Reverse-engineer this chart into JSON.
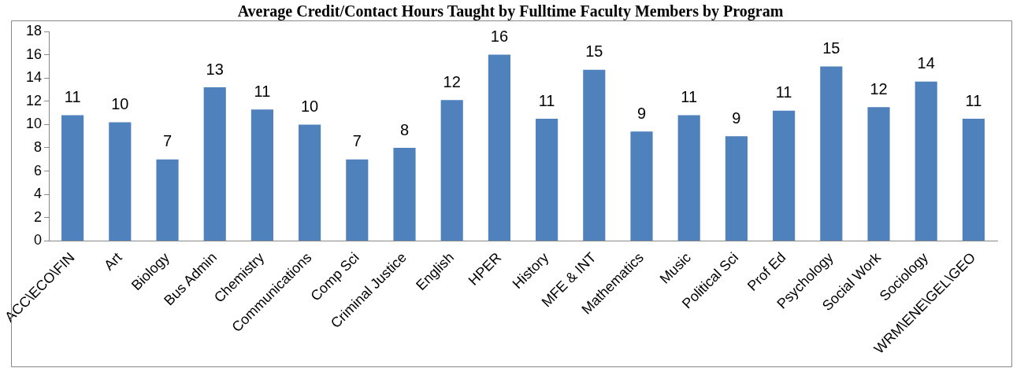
{
  "chart_data": {
    "type": "bar",
    "title": "Average Credit/Contact Hours Taught by Fulltime Faculty Members by Program",
    "categories": [
      "ACC\\ECO\\FIN",
      "Art",
      "Biology",
      "Bus Admin",
      "Chemistry",
      "Communications",
      "Comp Sci",
      "Criminal Justice",
      "English",
      "HPER",
      "History",
      "MFE & INT",
      "Mathematics",
      "Music",
      "Political Sci",
      "Prof Ed",
      "Psychology",
      "Social Work",
      "Sociology",
      "WRM\\ENE\\GEL\\GEO"
    ],
    "values": [
      10.8,
      10.2,
      7.0,
      13.2,
      11.3,
      10.0,
      7.0,
      8.0,
      12.1,
      16.0,
      10.5,
      14.7,
      9.4,
      10.8,
      9.0,
      11.2,
      15.0,
      11.5,
      13.7,
      10.5
    ],
    "value_labels": [
      "11",
      "10",
      "7",
      "13",
      "11",
      "10",
      "7",
      "8",
      "12",
      "16",
      "11",
      "15",
      "9",
      "11",
      "9",
      "11",
      "15",
      "12",
      "14",
      "11"
    ],
    "color": "#4f81bd",
    "ylim": [
      0,
      18
    ],
    "yticks": [
      0,
      2,
      4,
      6,
      8,
      10,
      12,
      14,
      16,
      18
    ],
    "grid": false,
    "legend": false
  }
}
